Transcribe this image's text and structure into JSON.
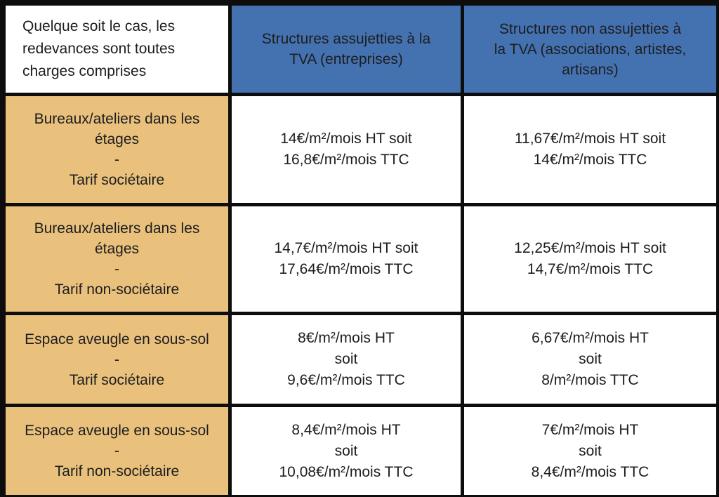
{
  "colors": {
    "header_bg": "#4472b0",
    "label_bg": "#e9c17c",
    "cell_bg": "#ffffff",
    "border": "#0d0d0d",
    "text": "#1d1d1f"
  },
  "table": {
    "header": {
      "intro": "Quelque soit le cas, les\nredevances sont toutes\ncharges comprises",
      "tva": "Structures assujetties à la\nTVA (entreprises)",
      "non_tva": "Structures non assujetties à\nla TVA (associations, artistes,\nartisans)"
    },
    "rows": [
      {
        "label": "Bureaux/ateliers dans les\nétages\n-\nTarif sociétaire",
        "tva": "14€/m²/mois HT soit\n16,8€/m²/mois TTC",
        "non_tva": "11,67€/m²/mois HT soit\n14€/m²/mois TTC"
      },
      {
        "label": "Bureaux/ateliers dans les\nétages\n-\nTarif non-sociétaire",
        "tva": "14,7€/m²/mois HT soit\n17,64€/m²/mois TTC",
        "non_tva": "12,25€/m²/mois HT soit\n14,7€/m²/mois TTC"
      },
      {
        "label": "Espace aveugle en sous-sol\n-\nTarif sociétaire",
        "tva": "8€/m²/mois HT\nsoit\n9,6€/m²/mois TTC",
        "non_tva": "6,67€/m²/mois HT\nsoit\n8/m²/mois TTC"
      },
      {
        "label": "Espace aveugle en sous-sol\n-\nTarif non-sociétaire",
        "tva": "8,4€/m²/mois HT\nsoit\n10,08€/m²/mois TTC",
        "non_tva": "7€/m²/mois HT\nsoit\n8,4€/m²/mois TTC"
      }
    ]
  },
  "chart_data": {
    "type": "table",
    "columns": [
      "Quelque soit le cas, les redevances sont toutes charges comprises",
      "Structures assujetties à la TVA (entreprises)",
      "Structures non assujetties à la TVA (associations, artistes, artisans)"
    ],
    "rows": [
      [
        "Bureaux/ateliers dans les étages - Tarif sociétaire",
        "14€/m²/mois HT soit 16,8€/m²/mois TTC",
        "11,67€/m²/mois HT soit 14€/m²/mois TTC"
      ],
      [
        "Bureaux/ateliers dans les étages - Tarif non-sociétaire",
        "14,7€/m²/mois HT soit 17,64€/m²/mois TTC",
        "12,25€/m²/mois HT soit 14,7€/m²/mois TTC"
      ],
      [
        "Espace aveugle en sous-sol - Tarif sociétaire",
        "8€/m²/mois HT soit 9,6€/m²/mois TTC",
        "6,67€/m²/mois HT soit 8/m²/mois TTC"
      ],
      [
        "Espace aveugle en sous-sol - Tarif non-sociétaire",
        "8,4€/m²/mois HT soit 10,08€/m²/mois TTC",
        "7€/m²/mois HT soit 8,4€/m²/mois TTC"
      ]
    ]
  }
}
